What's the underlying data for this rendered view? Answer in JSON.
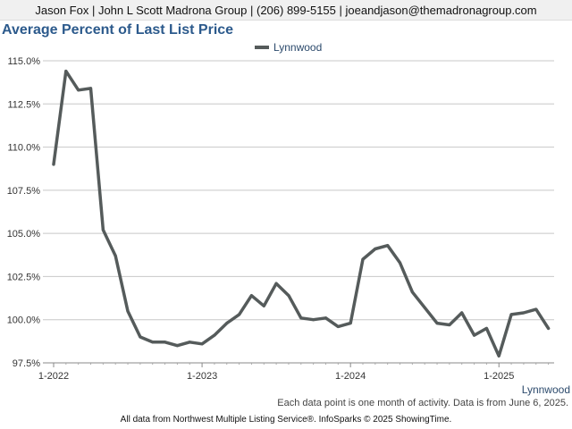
{
  "header": {
    "contact": "Jason Fox | John L Scott Madrona Group | (206) 899-5155 | joeandjason@themadronagroup.com"
  },
  "footnote": "Each data point is one month of activity. Data is from June 6, 2025.",
  "source": "All data from Northwest Multiple Listing Service®. InfoSparks © 2025 ShowingTime.",
  "chart_data": {
    "type": "line",
    "title": "Average Percent of Last List Price",
    "xlabel": "",
    "ylabel": "",
    "ylim": [
      97.5,
      115.0
    ],
    "yticks": [
      "97.5%",
      "100.0%",
      "102.5%",
      "105.0%",
      "107.5%",
      "110.0%",
      "112.5%",
      "115.0%"
    ],
    "ytick_values": [
      97.5,
      100.0,
      102.5,
      105.0,
      107.5,
      110.0,
      112.5,
      115.0
    ],
    "xticks": [
      "1-2022",
      "1-2023",
      "1-2024",
      "1-2025"
    ],
    "x": [
      "2022-01",
      "2022-02",
      "2022-03",
      "2022-04",
      "2022-05",
      "2022-06",
      "2022-07",
      "2022-08",
      "2022-09",
      "2022-10",
      "2022-11",
      "2022-12",
      "2023-01",
      "2023-02",
      "2023-03",
      "2023-04",
      "2023-05",
      "2023-06",
      "2023-07",
      "2023-08",
      "2023-09",
      "2023-10",
      "2023-11",
      "2023-12",
      "2024-01",
      "2024-02",
      "2024-03",
      "2024-04",
      "2024-05",
      "2024-06",
      "2024-07",
      "2024-08",
      "2024-09",
      "2024-10",
      "2024-11",
      "2024-12",
      "2025-01",
      "2025-02",
      "2025-03",
      "2025-04",
      "2025-05"
    ],
    "grid": true,
    "legend": "top-center",
    "series": [
      {
        "name": "Lynnwood",
        "color": "#555b5b",
        "values": [
          109.0,
          114.4,
          113.3,
          113.4,
          105.2,
          103.7,
          100.5,
          99.0,
          98.7,
          98.7,
          98.5,
          98.7,
          98.6,
          99.1,
          99.8,
          100.3,
          101.4,
          100.8,
          102.1,
          101.4,
          100.1,
          100.0,
          100.1,
          99.6,
          99.8,
          103.5,
          104.1,
          104.3,
          103.3,
          101.6,
          100.7,
          99.8,
          99.7,
          100.4,
          99.1,
          99.5,
          97.9,
          100.3,
          100.4,
          100.6,
          99.5
        ]
      }
    ],
    "series_end_label": "Lynnwood"
  }
}
